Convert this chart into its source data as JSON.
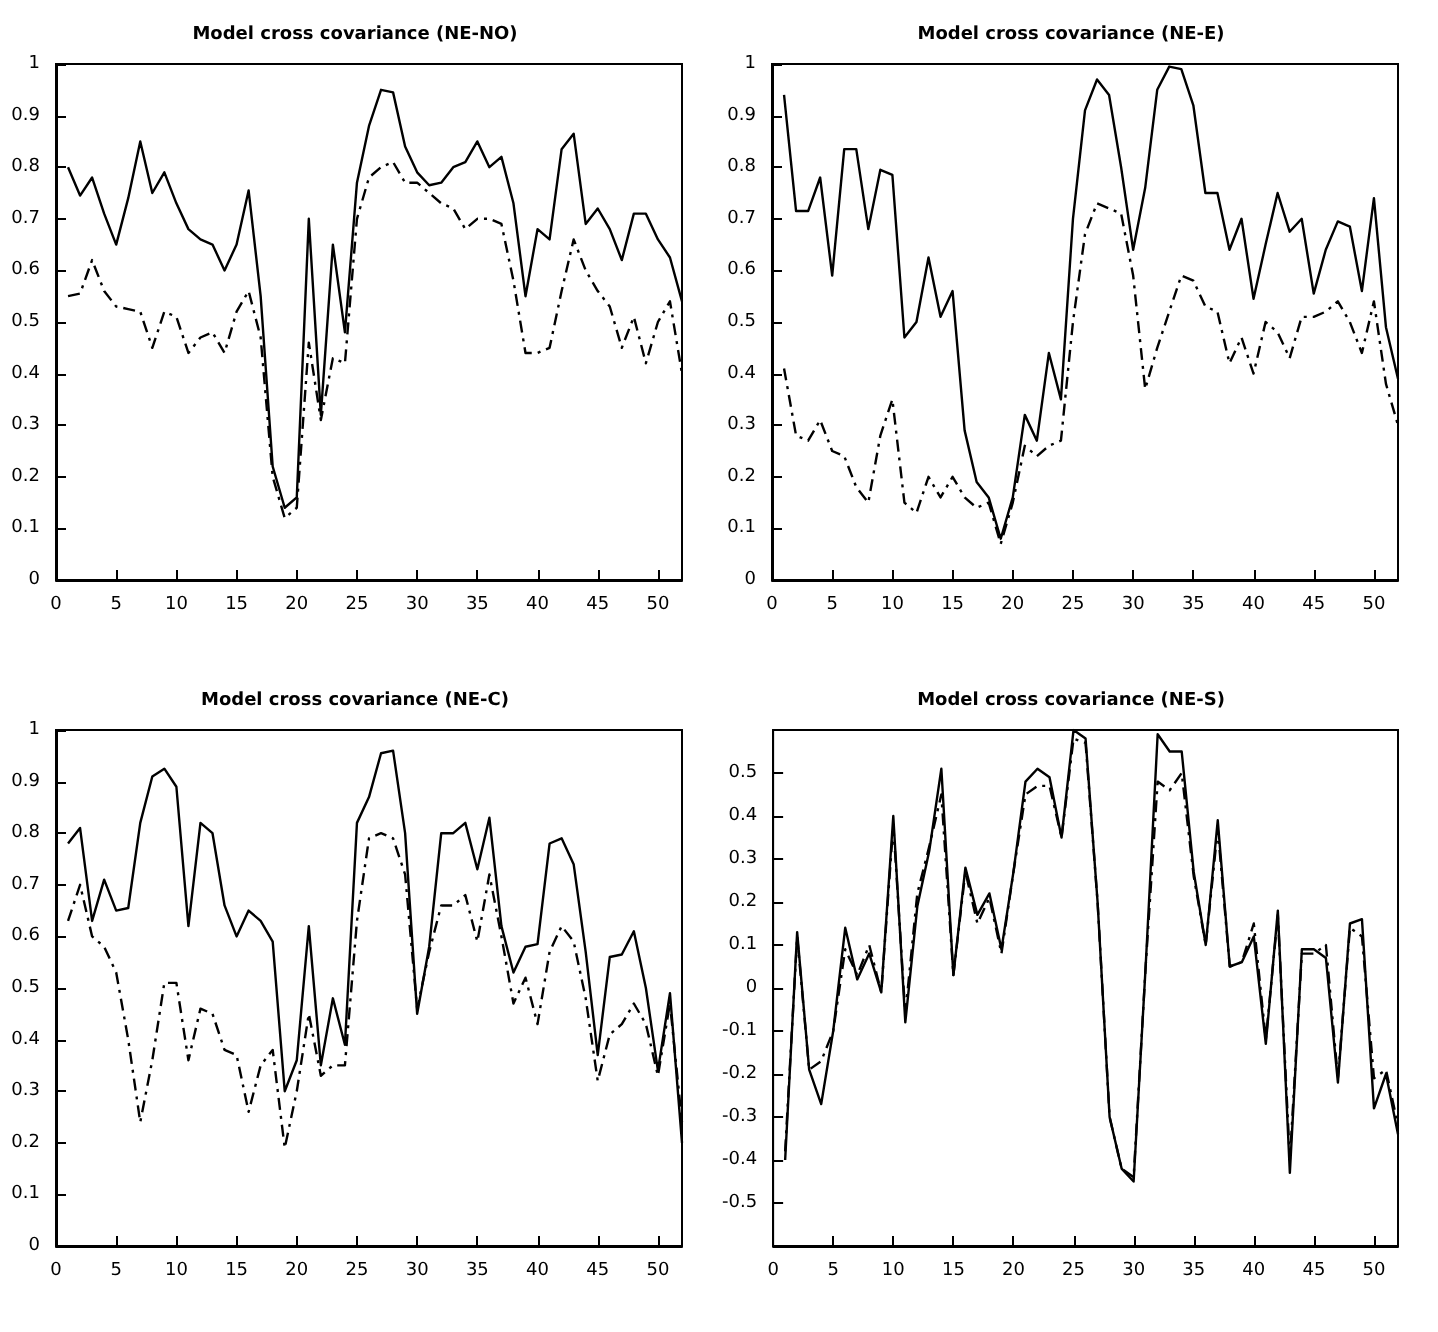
{
  "chart_data": [
    {
      "type": "line",
      "title": "Model cross covariance (NE-NO)",
      "x": [
        1,
        2,
        3,
        4,
        5,
        6,
        7,
        8,
        9,
        10,
        11,
        12,
        13,
        14,
        15,
        16,
        17,
        18,
        19,
        20,
        21,
        22,
        23,
        24,
        25,
        26,
        27,
        28,
        29,
        30,
        31,
        32,
        33,
        34,
        35,
        36,
        37,
        38,
        39,
        40,
        41,
        42,
        43,
        44,
        45,
        46,
        47,
        48,
        49,
        50,
        51,
        52
      ],
      "xlim": [
        0,
        52
      ],
      "xticks": [
        0,
        5,
        10,
        15,
        20,
        25,
        30,
        35,
        40,
        45,
        50
      ],
      "ylim": [
        0,
        1
      ],
      "yticks": [
        0,
        0.1,
        0.2,
        0.3,
        0.4,
        0.5,
        0.6,
        0.7,
        0.8,
        0.9,
        1
      ],
      "grid": false,
      "marker": "none",
      "series": [
        {
          "color": "#000000",
          "line_style": "solid",
          "values": [
            0.8,
            0.745,
            0.78,
            0.71,
            0.65,
            0.74,
            0.85,
            0.75,
            0.79,
            0.73,
            0.68,
            0.66,
            0.65,
            0.6,
            0.65,
            0.755,
            0.55,
            0.22,
            0.14,
            0.16,
            0.7,
            0.32,
            0.65,
            0.48,
            0.77,
            0.88,
            0.95,
            0.945,
            0.84,
            0.79,
            0.765,
            0.77,
            0.8,
            0.81,
            0.85,
            0.8,
            0.82,
            0.73,
            0.55,
            0.68,
            0.66,
            0.835,
            0.865,
            0.69,
            0.72,
            0.68,
            0.62,
            0.71,
            0.71,
            0.66,
            0.625,
            0.54
          ]
        },
        {
          "color": "#000000",
          "line_style": "dashed",
          "values": [
            0.55,
            0.555,
            0.62,
            0.56,
            0.53,
            0.525,
            0.52,
            0.45,
            0.52,
            0.51,
            0.44,
            0.47,
            0.48,
            0.44,
            0.52,
            0.56,
            0.47,
            0.2,
            0.12,
            0.14,
            0.46,
            0.31,
            0.43,
            0.42,
            0.7,
            0.78,
            0.8,
            0.81,
            0.77,
            0.77,
            0.75,
            0.73,
            0.72,
            0.68,
            0.7,
            0.7,
            0.69,
            0.58,
            0.44,
            0.44,
            0.45,
            0.56,
            0.66,
            0.6,
            0.56,
            0.53,
            0.45,
            0.51,
            0.42,
            0.5,
            0.54,
            0.4
          ]
        }
      ]
    },
    {
      "type": "line",
      "title": "Model cross covariance (NE-E)",
      "x": [
        1,
        2,
        3,
        4,
        5,
        6,
        7,
        8,
        9,
        10,
        11,
        12,
        13,
        14,
        15,
        16,
        17,
        18,
        19,
        20,
        21,
        22,
        23,
        24,
        25,
        26,
        27,
        28,
        29,
        30,
        31,
        32,
        33,
        34,
        35,
        36,
        37,
        38,
        39,
        40,
        41,
        42,
        43,
        44,
        45,
        46,
        47,
        48,
        49,
        50,
        51,
        52
      ],
      "xlim": [
        0,
        52
      ],
      "xticks": [
        0,
        5,
        10,
        15,
        20,
        25,
        30,
        35,
        40,
        45,
        50
      ],
      "ylim": [
        0,
        1
      ],
      "yticks": [
        0,
        0.1,
        0.2,
        0.3,
        0.4,
        0.5,
        0.6,
        0.7,
        0.8,
        0.9,
        1
      ],
      "grid": false,
      "marker": "none",
      "series": [
        {
          "color": "#000000",
          "line_style": "solid",
          "values": [
            0.94,
            0.715,
            0.715,
            0.78,
            0.59,
            0.835,
            0.835,
            0.68,
            0.795,
            0.785,
            0.47,
            0.5,
            0.625,
            0.51,
            0.56,
            0.29,
            0.19,
            0.16,
            0.08,
            0.16,
            0.32,
            0.27,
            0.44,
            0.35,
            0.7,
            0.91,
            0.97,
            0.94,
            0.8,
            0.64,
            0.76,
            0.95,
            0.995,
            0.99,
            0.92,
            0.75,
            0.75,
            0.64,
            0.7,
            0.545,
            0.65,
            0.75,
            0.675,
            0.7,
            0.555,
            0.64,
            0.695,
            0.685,
            0.56,
            0.74,
            0.49,
            0.39
          ]
        },
        {
          "color": "#000000",
          "line_style": "dashed",
          "values": [
            0.41,
            0.28,
            0.27,
            0.31,
            0.25,
            0.24,
            0.18,
            0.15,
            0.28,
            0.35,
            0.15,
            0.13,
            0.2,
            0.16,
            0.2,
            0.16,
            0.14,
            0.15,
            0.07,
            0.15,
            0.26,
            0.24,
            0.26,
            0.27,
            0.5,
            0.67,
            0.73,
            0.72,
            0.71,
            0.59,
            0.37,
            0.45,
            0.52,
            0.59,
            0.58,
            0.53,
            0.52,
            0.42,
            0.47,
            0.4,
            0.5,
            0.48,
            0.43,
            0.51,
            0.51,
            0.52,
            0.54,
            0.5,
            0.44,
            0.54,
            0.38,
            0.3
          ]
        }
      ]
    },
    {
      "type": "line",
      "title": "Model cross covariance (NE-C)",
      "x": [
        1,
        2,
        3,
        4,
        5,
        6,
        7,
        8,
        9,
        10,
        11,
        12,
        13,
        14,
        15,
        16,
        17,
        18,
        19,
        20,
        21,
        22,
        23,
        24,
        25,
        26,
        27,
        28,
        29,
        30,
        31,
        32,
        33,
        34,
        35,
        36,
        37,
        38,
        39,
        40,
        41,
        42,
        43,
        44,
        45,
        46,
        47,
        48,
        49,
        50,
        51,
        52
      ],
      "xlim": [
        0,
        52
      ],
      "xticks": [
        0,
        5,
        10,
        15,
        20,
        25,
        30,
        35,
        40,
        45,
        50
      ],
      "ylim": [
        0,
        1
      ],
      "yticks": [
        0,
        0.1,
        0.2,
        0.3,
        0.4,
        0.5,
        0.6,
        0.7,
        0.8,
        0.9,
        1
      ],
      "grid": false,
      "marker": "none",
      "series": [
        {
          "color": "#000000",
          "line_style": "solid",
          "values": [
            0.78,
            0.81,
            0.63,
            0.71,
            0.65,
            0.655,
            0.82,
            0.91,
            0.925,
            0.89,
            0.62,
            0.82,
            0.8,
            0.66,
            0.6,
            0.65,
            0.63,
            0.59,
            0.3,
            0.36,
            0.62,
            0.35,
            0.48,
            0.39,
            0.82,
            0.87,
            0.955,
            0.96,
            0.8,
            0.45,
            0.58,
            0.8,
            0.8,
            0.82,
            0.73,
            0.83,
            0.62,
            0.53,
            0.58,
            0.585,
            0.78,
            0.79,
            0.74,
            0.57,
            0.37,
            0.56,
            0.565,
            0.61,
            0.5,
            0.34,
            0.49,
            0.2
          ]
        },
        {
          "color": "#000000",
          "line_style": "dashed",
          "values": [
            0.63,
            0.7,
            0.6,
            0.58,
            0.53,
            0.4,
            0.24,
            0.36,
            0.51,
            0.51,
            0.36,
            0.46,
            0.45,
            0.38,
            0.37,
            0.26,
            0.35,
            0.38,
            0.19,
            0.3,
            0.45,
            0.33,
            0.35,
            0.35,
            0.63,
            0.79,
            0.8,
            0.79,
            0.72,
            0.46,
            0.57,
            0.66,
            0.66,
            0.68,
            0.59,
            0.72,
            0.6,
            0.47,
            0.52,
            0.43,
            0.57,
            0.62,
            0.59,
            0.48,
            0.32,
            0.41,
            0.43,
            0.47,
            0.43,
            0.33,
            0.47,
            0.24
          ]
        }
      ]
    },
    {
      "type": "line",
      "title": "Model cross covariance (NE-S)",
      "x": [
        1,
        2,
        3,
        4,
        5,
        6,
        7,
        8,
        9,
        10,
        11,
        12,
        13,
        14,
        15,
        16,
        17,
        18,
        19,
        20,
        21,
        22,
        23,
        24,
        25,
        26,
        27,
        28,
        29,
        30,
        31,
        32,
        33,
        34,
        35,
        36,
        37,
        38,
        39,
        40,
        41,
        42,
        43,
        44,
        45,
        46,
        47,
        48,
        49,
        50,
        51,
        52
      ],
      "xlim": [
        0,
        52
      ],
      "xticks": [
        0,
        5,
        10,
        15,
        20,
        25,
        30,
        35,
        40,
        45,
        50
      ],
      "ylim": [
        -0.6,
        0.6
      ],
      "yticks": [
        -0.5,
        -0.4,
        -0.3,
        -0.2,
        -0.1,
        0,
        0.1,
        0.2,
        0.3,
        0.4,
        0.5
      ],
      "grid": false,
      "marker": "none",
      "series": [
        {
          "color": "#000000",
          "line_style": "solid",
          "values": [
            -0.4,
            0.13,
            -0.19,
            -0.27,
            -0.1,
            0.14,
            0.02,
            0.08,
            -0.01,
            0.4,
            -0.08,
            0.19,
            0.32,
            0.51,
            0.03,
            0.28,
            0.17,
            0.22,
            0.09,
            0.27,
            0.48,
            0.51,
            0.49,
            0.35,
            0.6,
            0.58,
            0.2,
            -0.3,
            -0.42,
            -0.45,
            0.05,
            0.59,
            0.55,
            0.55,
            0.27,
            0.1,
            0.39,
            0.05,
            0.06,
            0.12,
            -0.13,
            0.18,
            -0.43,
            0.09,
            0.09,
            0.07,
            -0.22,
            0.15,
            0.16,
            -0.28,
            -0.2,
            -0.34
          ]
        },
        {
          "color": "#000000",
          "line_style": "dashed",
          "values": [
            -0.38,
            0.12,
            -0.19,
            -0.17,
            -0.1,
            0.09,
            0.03,
            0.1,
            -0.01,
            0.38,
            -0.06,
            0.22,
            0.33,
            0.45,
            0.03,
            0.27,
            0.15,
            0.21,
            0.08,
            0.27,
            0.45,
            0.47,
            0.47,
            0.35,
            0.58,
            0.57,
            0.2,
            -0.3,
            -0.42,
            -0.44,
            0.05,
            0.48,
            0.46,
            0.5,
            0.26,
            0.1,
            0.37,
            0.05,
            0.06,
            0.15,
            -0.12,
            0.17,
            -0.4,
            0.08,
            0.08,
            0.1,
            -0.21,
            0.14,
            0.12,
            -0.21,
            -0.19,
            -0.32
          ]
        }
      ]
    }
  ]
}
